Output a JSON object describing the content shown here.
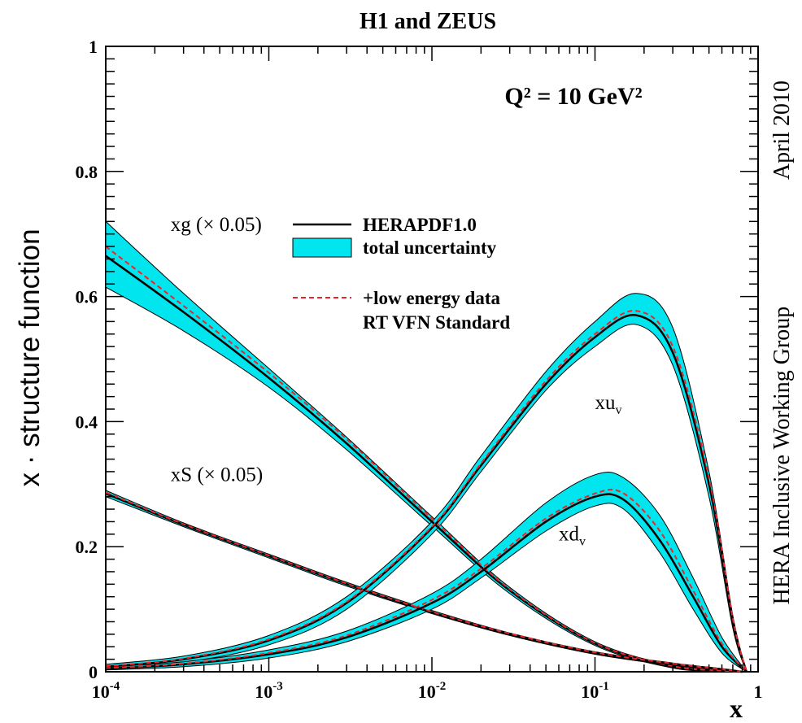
{
  "chart_data": {
    "type": "line",
    "title": "H1 and ZEUS",
    "subtitle": "Q² = 10 GeV²",
    "xlabel": "x",
    "ylabel": "x · structure function",
    "x_scale": "log",
    "xlim": [
      0.0001,
      1
    ],
    "ylim": [
      0,
      1
    ],
    "x_ticks": [
      {
        "value": 0.0001,
        "base": "10",
        "exp": "-4"
      },
      {
        "value": 0.001,
        "base": "10",
        "exp": "-3"
      },
      {
        "value": 0.01,
        "base": "10",
        "exp": "-2"
      },
      {
        "value": 0.1,
        "base": "10",
        "exp": "-1"
      },
      {
        "value": 1,
        "base": "1",
        "exp": ""
      }
    ],
    "y_ticks": [
      {
        "value": 0,
        "label": "0"
      },
      {
        "value": 0.2,
        "label": "0.2"
      },
      {
        "value": 0.4,
        "label": "0.4"
      },
      {
        "value": 0.6,
        "label": "0.6"
      },
      {
        "value": 0.8,
        "label": "0.8"
      },
      {
        "value": 1,
        "label": "1"
      }
    ],
    "side_labels": {
      "top": "April 2010",
      "bottom": "HERA Inclusive Working Group"
    },
    "legend": {
      "placement": "upper-center",
      "entries": [
        {
          "label": "HERAPDF1.0",
          "style": "solid-black"
        },
        {
          "label": "total uncertainty",
          "style": "band-cyan"
        },
        {
          "label": "+low energy data",
          "style": "dashed-red"
        },
        {
          "label": "RT VFN Standard",
          "style": "text"
        }
      ]
    },
    "colors": {
      "band": "#00e5ee",
      "central": "#000000",
      "alt": "#e8262b"
    },
    "series": [
      {
        "name": "xg (× 0.05)",
        "label_base": "xg",
        "label_sub": "",
        "label_suffix": " (× 0.05)",
        "label_pos": {
          "x": 0.00025,
          "y": 0.705
        },
        "x": [
          0.0001,
          0.0003,
          0.001,
          0.003,
          0.01,
          0.03,
          0.1,
          0.3,
          0.6,
          0.8
        ],
        "y": [
          0.665,
          0.575,
          0.47,
          0.365,
          0.24,
          0.13,
          0.045,
          0.008,
          0.002,
          0.0
        ],
        "y_lo": [
          0.615,
          0.545,
          0.455,
          0.355,
          0.233,
          0.125,
          0.042,
          0.006,
          0.001,
          0.0
        ],
        "y_hi": [
          0.72,
          0.605,
          0.485,
          0.375,
          0.248,
          0.135,
          0.048,
          0.01,
          0.003,
          0.0
        ],
        "y_alt": [
          0.68,
          0.585,
          0.478,
          0.372,
          0.245,
          0.132,
          0.046,
          0.009,
          0.002,
          0.0
        ]
      },
      {
        "name": "xS (× 0.05)",
        "label_base": "xS",
        "label_sub": "",
        "label_suffix": " (× 0.05)",
        "label_pos": {
          "x": 0.00025,
          "y": 0.305
        },
        "x": [
          0.0001,
          0.0003,
          0.001,
          0.003,
          0.01,
          0.03,
          0.1,
          0.3,
          0.6,
          0.8
        ],
        "y": [
          0.285,
          0.235,
          0.185,
          0.14,
          0.095,
          0.06,
          0.03,
          0.012,
          0.004,
          0.0
        ],
        "y_lo": [
          0.28,
          0.232,
          0.182,
          0.137,
          0.093,
          0.058,
          0.028,
          0.01,
          0.003,
          0.0
        ],
        "y_hi": [
          0.29,
          0.238,
          0.188,
          0.143,
          0.098,
          0.062,
          0.032,
          0.014,
          0.005,
          0.0
        ],
        "y_alt": [
          0.287,
          0.236,
          0.186,
          0.141,
          0.096,
          0.061,
          0.031,
          0.013,
          0.004,
          0.0
        ]
      },
      {
        "name": "xu_v",
        "label_base": "xu",
        "label_sub": "v",
        "label_suffix": "",
        "label_pos": {
          "x": 0.1,
          "y": 0.42
        },
        "x": [
          0.0001,
          0.0003,
          0.001,
          0.003,
          0.01,
          0.02,
          0.05,
          0.1,
          0.18,
          0.3,
          0.5,
          0.7,
          0.85
        ],
        "y": [
          0.008,
          0.02,
          0.05,
          0.11,
          0.23,
          0.33,
          0.46,
          0.535,
          0.57,
          0.51,
          0.3,
          0.08,
          0.0
        ],
        "y_lo": [
          0.005,
          0.015,
          0.043,
          0.1,
          0.22,
          0.32,
          0.45,
          0.52,
          0.555,
          0.49,
          0.28,
          0.07,
          0.0
        ],
        "y_hi": [
          0.012,
          0.025,
          0.058,
          0.12,
          0.24,
          0.345,
          0.48,
          0.56,
          0.605,
          0.55,
          0.32,
          0.09,
          0.0
        ],
        "y_alt": [
          0.009,
          0.021,
          0.052,
          0.112,
          0.232,
          0.333,
          0.465,
          0.54,
          0.577,
          0.52,
          0.31,
          0.085,
          0.0
        ]
      },
      {
        "name": "xd_v",
        "label_base": "xd",
        "label_sub": "v",
        "label_suffix": "",
        "label_pos": {
          "x": 0.06,
          "y": 0.21
        },
        "x": [
          0.0001,
          0.0003,
          0.001,
          0.003,
          0.01,
          0.02,
          0.05,
          0.1,
          0.15,
          0.25,
          0.4,
          0.6,
          0.85
        ],
        "y": [
          0.005,
          0.012,
          0.028,
          0.055,
          0.11,
          0.16,
          0.24,
          0.28,
          0.275,
          0.21,
          0.12,
          0.04,
          0.0
        ],
        "y_lo": [
          0.003,
          0.008,
          0.022,
          0.048,
          0.1,
          0.15,
          0.225,
          0.265,
          0.26,
          0.19,
          0.1,
          0.03,
          0.0
        ],
        "y_hi": [
          0.008,
          0.016,
          0.035,
          0.065,
          0.125,
          0.18,
          0.27,
          0.315,
          0.31,
          0.25,
          0.15,
          0.055,
          0.0
        ],
        "y_alt": [
          0.006,
          0.013,
          0.03,
          0.058,
          0.115,
          0.165,
          0.245,
          0.285,
          0.285,
          0.225,
          0.13,
          0.045,
          0.0
        ]
      }
    ]
  }
}
